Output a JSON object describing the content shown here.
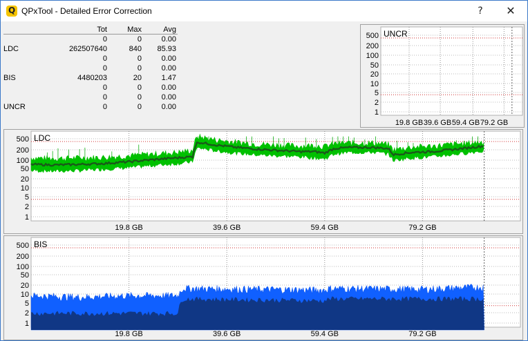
{
  "window": {
    "title": "QPxTool - Detailed Error Correction",
    "help_glyph": "?",
    "close_glyph": "✕",
    "accent": "#3a78c8"
  },
  "stats": {
    "headers": [
      "",
      "Tot",
      "Max",
      "Avg"
    ],
    "rows": [
      {
        "label": "",
        "tot": "0",
        "max": "0",
        "avg": "0.00"
      },
      {
        "label": "LDC",
        "tot": "262507640",
        "max": "840",
        "avg": "85.93"
      },
      {
        "label": "",
        "tot": "0",
        "max": "0",
        "avg": "0.00"
      },
      {
        "label": "",
        "tot": "0",
        "max": "0",
        "avg": "0.00"
      },
      {
        "label": "BIS",
        "tot": "4480203",
        "max": "20",
        "avg": "1.47"
      },
      {
        "label": "",
        "tot": "0",
        "max": "0",
        "avg": "0.00"
      },
      {
        "label": "",
        "tot": "0",
        "max": "0",
        "avg": "0.00"
      },
      {
        "label": "UNCR",
        "tot": "0",
        "max": "0",
        "avg": "0.00"
      }
    ]
  },
  "chart_data": [
    {
      "type": "area",
      "title": "UNCR",
      "yscale": "log",
      "yticks": [
        "500",
        "200",
        "100",
        "50",
        "20",
        "10",
        "5",
        "2",
        "1"
      ],
      "xticks": [
        "19.8 GB",
        "39.6 GB",
        "59.4 GB",
        "79.2 GB"
      ],
      "x_range_gb": [
        0,
        100
      ],
      "series": [
        {
          "values": []
        }
      ],
      "colors": {
        "red_dotted": "#cc2020"
      }
    },
    {
      "type": "area",
      "title": "LDC",
      "yscale": "log",
      "yticks": [
        "500",
        "200",
        "100",
        "50",
        "20",
        "10",
        "5",
        "2",
        "1"
      ],
      "xticks": [
        "19.8 GB",
        "39.6 GB",
        "59.4 GB",
        "79.2 GB"
      ],
      "x_range_gb": [
        0,
        100
      ],
      "red_lines": [
        400,
        4
      ],
      "series": [
        {
          "role": "max",
          "color": "#00c000",
          "x": [
            0,
            5,
            10,
            15,
            20,
            25,
            30,
            33,
            34,
            38,
            42,
            46,
            50,
            55,
            58,
            60,
            62,
            65,
            70,
            73,
            74,
            78,
            82,
            86,
            90,
            92.6
          ],
          "values": [
            110,
            105,
            110,
            115,
            130,
            150,
            170,
            200,
            600,
            450,
            380,
            330,
            310,
            280,
            300,
            270,
            340,
            360,
            360,
            320,
            210,
            260,
            280,
            320,
            360,
            400
          ]
        },
        {
          "role": "min",
          "color": "#00c000",
          "x": [
            0,
            5,
            10,
            15,
            20,
            25,
            30,
            33,
            34,
            38,
            42,
            46,
            50,
            55,
            58,
            60,
            62,
            65,
            70,
            73,
            74,
            78,
            82,
            86,
            90,
            92.6
          ],
          "values": [
            40,
            38,
            40,
            45,
            50,
            60,
            70,
            80,
            240,
            190,
            160,
            140,
            130,
            120,
            110,
            100,
            150,
            170,
            170,
            150,
            90,
            110,
            120,
            140,
            170,
            190
          ]
        },
        {
          "role": "avg",
          "color": "#1a5a1a",
          "x": [
            0,
            5,
            10,
            15,
            20,
            25,
            30,
            33,
            34,
            38,
            42,
            46,
            50,
            55,
            58,
            60,
            62,
            65,
            70,
            73,
            74,
            78,
            82,
            86,
            90,
            92.6
          ],
          "values": [
            65,
            62,
            65,
            70,
            80,
            95,
            110,
            120,
            380,
            300,
            250,
            220,
            200,
            180,
            180,
            160,
            230,
            250,
            250,
            230,
            140,
            170,
            180,
            210,
            250,
            280
          ]
        }
      ]
    },
    {
      "type": "area",
      "title": "BIS",
      "yscale": "log",
      "yticks": [
        "500",
        "200",
        "100",
        "50",
        "20",
        "10",
        "5",
        "2",
        "1"
      ],
      "xticks": [
        "19.8 GB",
        "39.6 GB",
        "59.4 GB",
        "79.2 GB"
      ],
      "x_range_gb": [
        0,
        100
      ],
      "red_lines": [
        400,
        4
      ],
      "series": [
        {
          "role": "max",
          "color": "#1060ff",
          "x": [
            0,
            10,
            20,
            30,
            31,
            60,
            61,
            80,
            92.6
          ],
          "values": [
            9,
            8,
            9,
            9,
            16,
            14,
            16,
            15,
            18
          ]
        },
        {
          "role": "avg",
          "color": "#103070",
          "x": [
            0,
            30,
            31,
            60,
            61,
            92.6
          ],
          "values": [
            2.2,
            2.2,
            7,
            6,
            7,
            7
          ]
        }
      ]
    }
  ]
}
